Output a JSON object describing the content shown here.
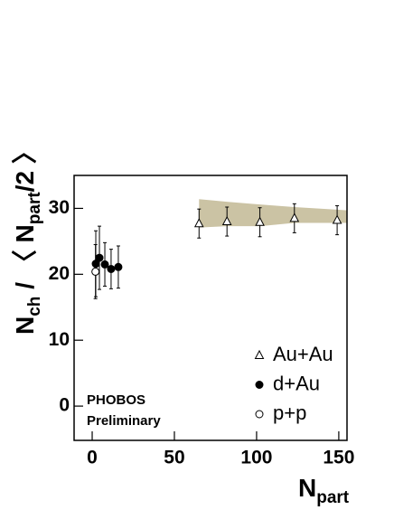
{
  "chart_data": {
    "type": "scatter",
    "x_label": [
      "N",
      "part"
    ],
    "y_label": [
      "N",
      "ch",
      " / 〈 N",
      "part",
      "/2 〉"
    ],
    "annotations": [
      "PHOBOS",
      "Preliminary"
    ],
    "xlim": [
      -11,
      155
    ],
    "ylim": [
      -5.2,
      35
    ],
    "xticks": [
      0,
      50,
      100,
      150
    ],
    "yticks": [
      0,
      10,
      20,
      30
    ],
    "band": {
      "color": "#cbc3a4",
      "x": [
        65,
        82,
        102,
        123,
        149,
        155
      ],
      "upper": [
        31.4,
        31.0,
        30.6,
        30.2,
        29.8,
        29.7
      ],
      "lower": [
        27.1,
        27.3,
        27.3,
        27.8,
        27.8,
        27.8
      ]
    },
    "series": [
      {
        "name": "Au+Au",
        "marker": "triangle-open",
        "color": "#000000",
        "x": [
          65,
          82,
          102,
          123,
          149
        ],
        "values": [
          27.7,
          28.0,
          27.9,
          28.5,
          28.2
        ],
        "errors": [
          2.2,
          2.2,
          2.2,
          2.2,
          2.2
        ]
      },
      {
        "name": "d+Au",
        "marker": "circle-filled",
        "color": "#000000",
        "x": [
          2.2,
          4.4,
          7.7,
          11.5,
          15.9
        ],
        "values": [
          21.6,
          22.5,
          21.5,
          20.8,
          21.1
        ],
        "errors": [
          5.0,
          4.8,
          3.3,
          3.0,
          3.2
        ]
      },
      {
        "name": "p+p",
        "marker": "circle-open",
        "color": "#000000",
        "x": [
          2.0
        ],
        "values": [
          20.4
        ],
        "errors": [
          4.1
        ]
      }
    ]
  }
}
